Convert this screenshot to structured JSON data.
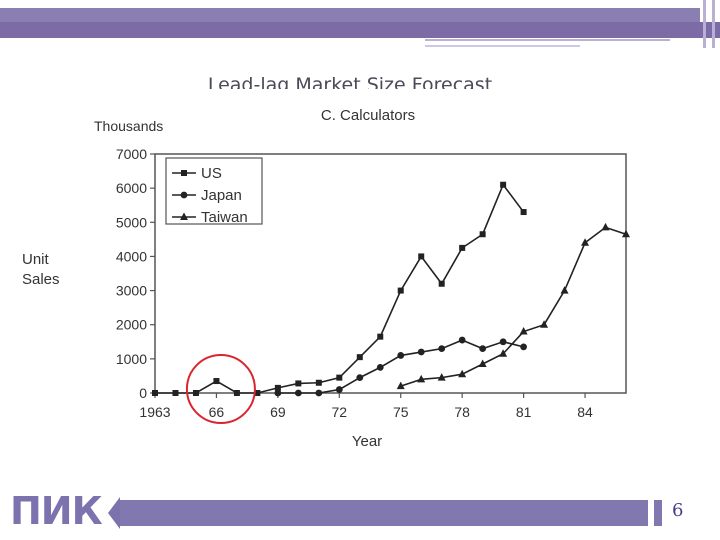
{
  "slide": {
    "title": "Lead-lag Market Size Forecast",
    "page_number": "6",
    "logo_text": "ПИК",
    "accent_color": "#7d6ba6"
  },
  "chart_data": {
    "type": "line",
    "title": "C. Calculators",
    "ylabel": "Unit Sales",
    "yunit": "Thousands",
    "xlabel": "Year",
    "xlim": [
      1963,
      1986
    ],
    "ylim": [
      0,
      7000
    ],
    "yticks": [
      0,
      1000,
      2000,
      3000,
      4000,
      5000,
      6000,
      7000
    ],
    "xticks": [
      1963,
      1966,
      1969,
      1972,
      1975,
      1978,
      1981,
      1984
    ],
    "xtick_labels": [
      "1963",
      "66",
      "69",
      "72",
      "75",
      "78",
      "81",
      "84"
    ],
    "legend_position": "top-left",
    "grid": false,
    "series": [
      {
        "name": "US",
        "marker": "square",
        "x": [
          1963,
          1964,
          1965,
          1966,
          1967,
          1968,
          1969,
          1970,
          1971,
          1972,
          1973,
          1974,
          1975,
          1976,
          1977,
          1978,
          1979,
          1980,
          1981
        ],
        "y": [
          0,
          0,
          0,
          350,
          0,
          0,
          150,
          280,
          300,
          450,
          1050,
          1650,
          3000,
          4000,
          3200,
          4250,
          4650,
          6100,
          5300
        ]
      },
      {
        "name": "Japan",
        "marker": "circle",
        "x": [
          1969,
          1970,
          1971,
          1972,
          1973,
          1974,
          1975,
          1976,
          1977,
          1978,
          1979,
          1980,
          1981
        ],
        "y": [
          0,
          0,
          0,
          100,
          450,
          750,
          1100,
          1200,
          1300,
          1550,
          1300,
          1500,
          1350
        ]
      },
      {
        "name": "Taiwan",
        "marker": "triangle",
        "x": [
          1975,
          1976,
          1977,
          1978,
          1979,
          1980,
          1981,
          1982,
          1983,
          1984,
          1985,
          1986
        ],
        "y": [
          200,
          400,
          450,
          550,
          850,
          1150,
          1800,
          2000,
          3000,
          4400,
          4850,
          4650
        ]
      }
    ],
    "annotation": {
      "shape": "circle",
      "color": "#d9262e",
      "x_center": 1967,
      "y_center": 0
    }
  }
}
